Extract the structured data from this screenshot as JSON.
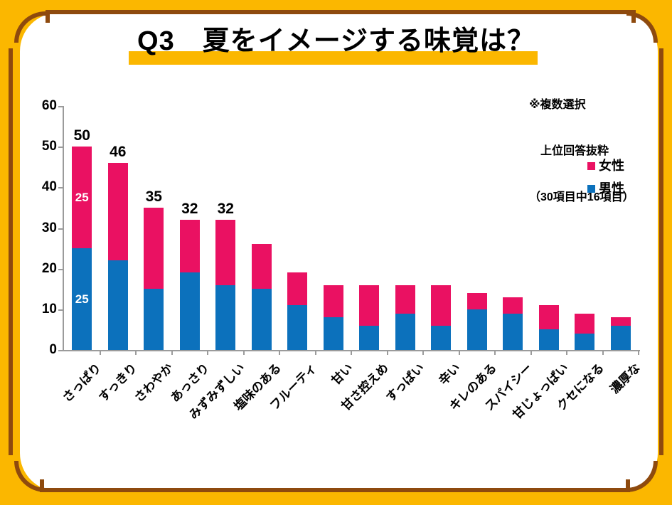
{
  "note": {
    "line1": "※複数選択",
    "line2": "　上位回答抜粋",
    "line3": "（30項目中16項目）"
  },
  "legend": {
    "items": [
      {
        "label": "女性",
        "color": "#EA1162"
      },
      {
        "label": "男性",
        "color": "#0C71BC"
      }
    ]
  },
  "colors": {
    "female_pink": "#EA1162",
    "male_blue": "#0C71BC",
    "frame_yellow": "#FBB700",
    "frame_brown": "#8E4A0E",
    "axis_grey": "#9B9B9B",
    "title_highlight": "#FBB700"
  },
  "chart_data": {
    "type": "bar",
    "stacked": true,
    "title": "Q3　夏をイメージする味覚は？",
    "categories": [
      "さっぱり",
      "すっきり",
      "さわやか",
      "あっさり",
      "みずみずしい",
      "塩味のある",
      "フルーティ",
      "甘い",
      "甘さ控えめ",
      "すっぱい",
      "辛い",
      "キレのある",
      "スパイシー",
      "甘じょっぱい",
      "クセになる",
      "濃厚な"
    ],
    "series": [
      {
        "name": "男性",
        "color": "#0C71BC",
        "values": [
          25,
          22,
          15,
          19,
          16,
          15,
          11,
          8,
          6,
          9,
          6,
          10,
          9,
          5,
          4,
          6
        ],
        "value_labels": [
          "25",
          "",
          "",
          "",
          "",
          "",
          "",
          "",
          "",
          "",
          "",
          "",
          "",
          "",
          "",
          ""
        ]
      },
      {
        "name": "女性",
        "color": "#EA1162",
        "values": [
          25,
          24,
          20,
          13,
          16,
          11,
          8,
          8,
          10,
          7,
          10,
          4,
          4,
          6,
          5,
          2
        ],
        "value_labels": [
          "25",
          "",
          "",
          "",
          "",
          "",
          "",
          "",
          "",
          "",
          "",
          "",
          "",
          "",
          "",
          ""
        ]
      }
    ],
    "totals": [
      50,
      46,
      35,
      32,
      32,
      26,
      19,
      16,
      16,
      16,
      16,
      14,
      13,
      11,
      9,
      8
    ],
    "total_labels": [
      "50",
      "46",
      "35",
      "32",
      "32",
      "",
      "",
      "",
      "",
      "",
      "",
      "",
      "",
      "",
      "",
      ""
    ],
    "xlabel": "",
    "ylabel": "",
    "ylim": [
      0,
      60
    ],
    "yticks": [
      0,
      10,
      20,
      30,
      40,
      50,
      60
    ],
    "grid": false,
    "legend_position": "right"
  }
}
